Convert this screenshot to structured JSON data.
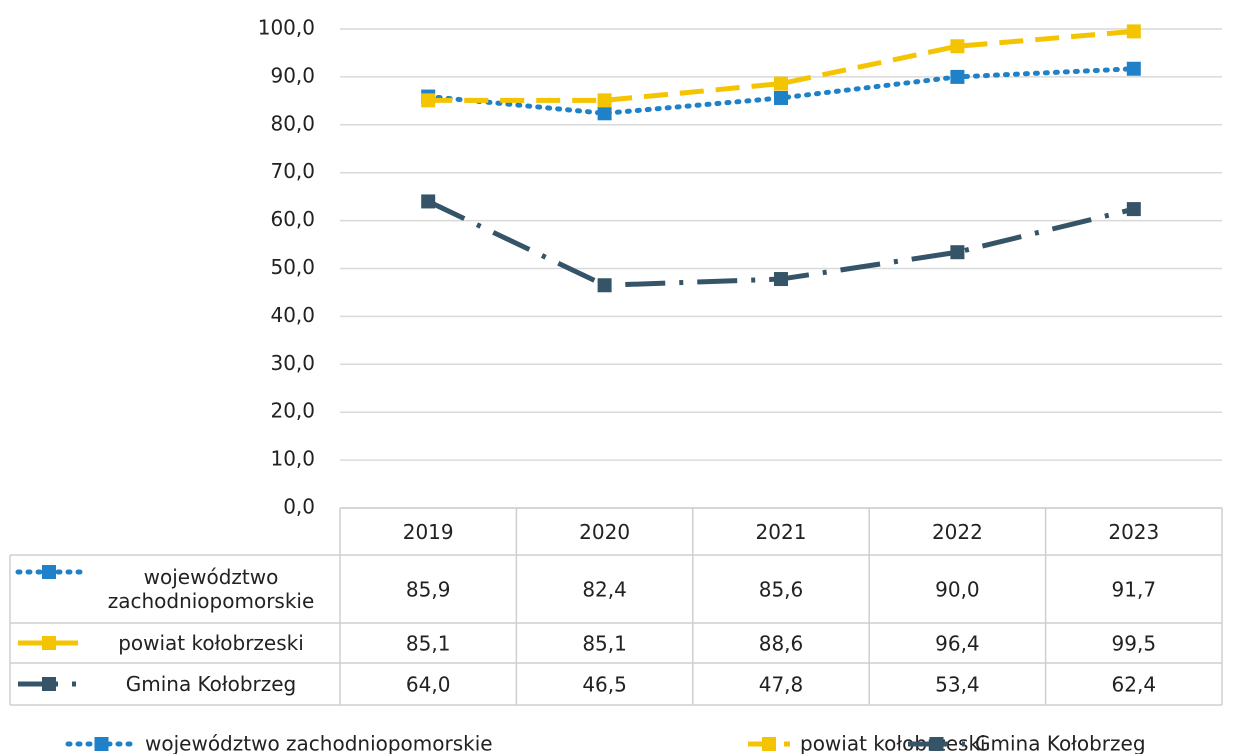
{
  "chart_data": {
    "type": "line",
    "categories": [
      "2019",
      "2020",
      "2021",
      "2022",
      "2023"
    ],
    "series": [
      {
        "name": "województwo zachodniopomorskie",
        "color": "#1f82c8",
        "dash": "dotted",
        "values": [
          85.9,
          82.4,
          85.6,
          90.0,
          91.7
        ],
        "value_labels": [
          "85,9",
          "82,4",
          "85,6",
          "90,0",
          "91,7"
        ]
      },
      {
        "name": "powiat kołobrzeski",
        "color": "#f5c400",
        "dash": "dashed",
        "values": [
          85.1,
          85.1,
          88.6,
          96.4,
          99.5
        ],
        "value_labels": [
          "85,1",
          "85,1",
          "88,6",
          "96,4",
          "99,5"
        ]
      },
      {
        "name": "Gmina Kołobrzeg",
        "color": "#355468",
        "dash": "dashdot",
        "values": [
          64.0,
          46.5,
          47.8,
          53.4,
          62.4
        ],
        "value_labels": [
          "64,0",
          "46,5",
          "47,8",
          "53,4",
          "62,4"
        ]
      }
    ],
    "ylim": [
      0,
      100
    ],
    "yticks": [
      {
        "value": 0,
        "label": "0,0"
      },
      {
        "value": 10,
        "label": "10,0"
      },
      {
        "value": 20,
        "label": "20,0"
      },
      {
        "value": 30,
        "label": "30,0"
      },
      {
        "value": 40,
        "label": "40,0"
      },
      {
        "value": 50,
        "label": "50,0"
      },
      {
        "value": 60,
        "label": "60,0"
      },
      {
        "value": 70,
        "label": "70,0"
      },
      {
        "value": 80,
        "label": "80,0"
      },
      {
        "value": 90,
        "label": "90,0"
      },
      {
        "value": {
          "value": 100,
          "label": "100,0"
        }
      }
    ],
    "grid": true,
    "legend": "bottom",
    "data_table": true
  }
}
